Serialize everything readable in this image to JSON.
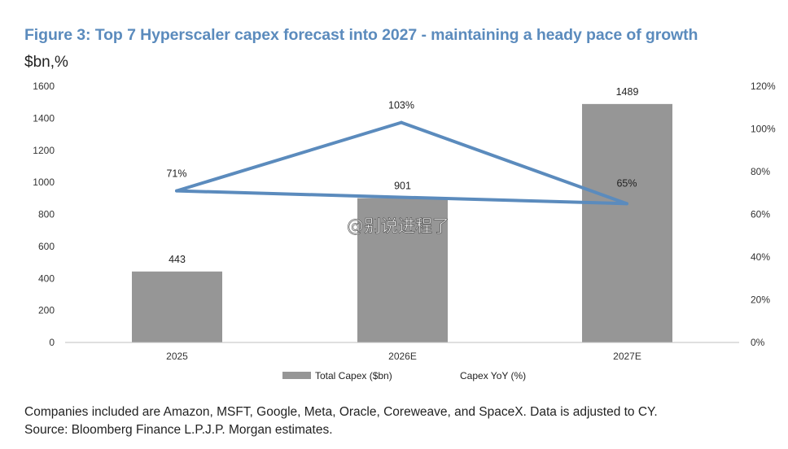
{
  "title": "Figure 3: Top 7 Hyperscaler capex forecast into 2027 - maintaining a heady pace of growth",
  "unit_label": "$bn,%",
  "watermark": "@别说进程了",
  "footnote": "Companies included are Amazon, MSFT, Google, Meta, Oracle, Coreweave, and SpaceX. Data is adjusted to CY.",
  "source": "Source: Bloomberg Finance L.P.J.P. Morgan estimates.",
  "colors": {
    "bar": "#969696",
    "line": "#5b8bbd",
    "title": "#5b8bbd"
  },
  "chart_data": {
    "type": "bar",
    "categories": [
      "2025",
      "2026E",
      "2027E"
    ],
    "series": [
      {
        "name": "Total Capex ($bn)",
        "type": "bar",
        "axis": "left",
        "values": [
          443,
          901,
          1489
        ],
        "labels": [
          "443",
          "901",
          "1489"
        ]
      },
      {
        "name": "Capex YoY (%)",
        "type": "line",
        "axis": "right",
        "values": [
          71,
          103,
          65
        ],
        "labels": [
          "71%",
          "103%",
          "65%"
        ]
      }
    ],
    "ylim_left": [
      0,
      1600
    ],
    "yticks_left": [
      "0",
      "200",
      "400",
      "600",
      "800",
      "1000",
      "1200",
      "1400",
      "1600"
    ],
    "ylim_right": [
      0,
      120
    ],
    "yticks_right": [
      "0%",
      "20%",
      "40%",
      "60%",
      "80%",
      "100%",
      "120%"
    ],
    "grid": false,
    "legend_position": "bottom"
  }
}
